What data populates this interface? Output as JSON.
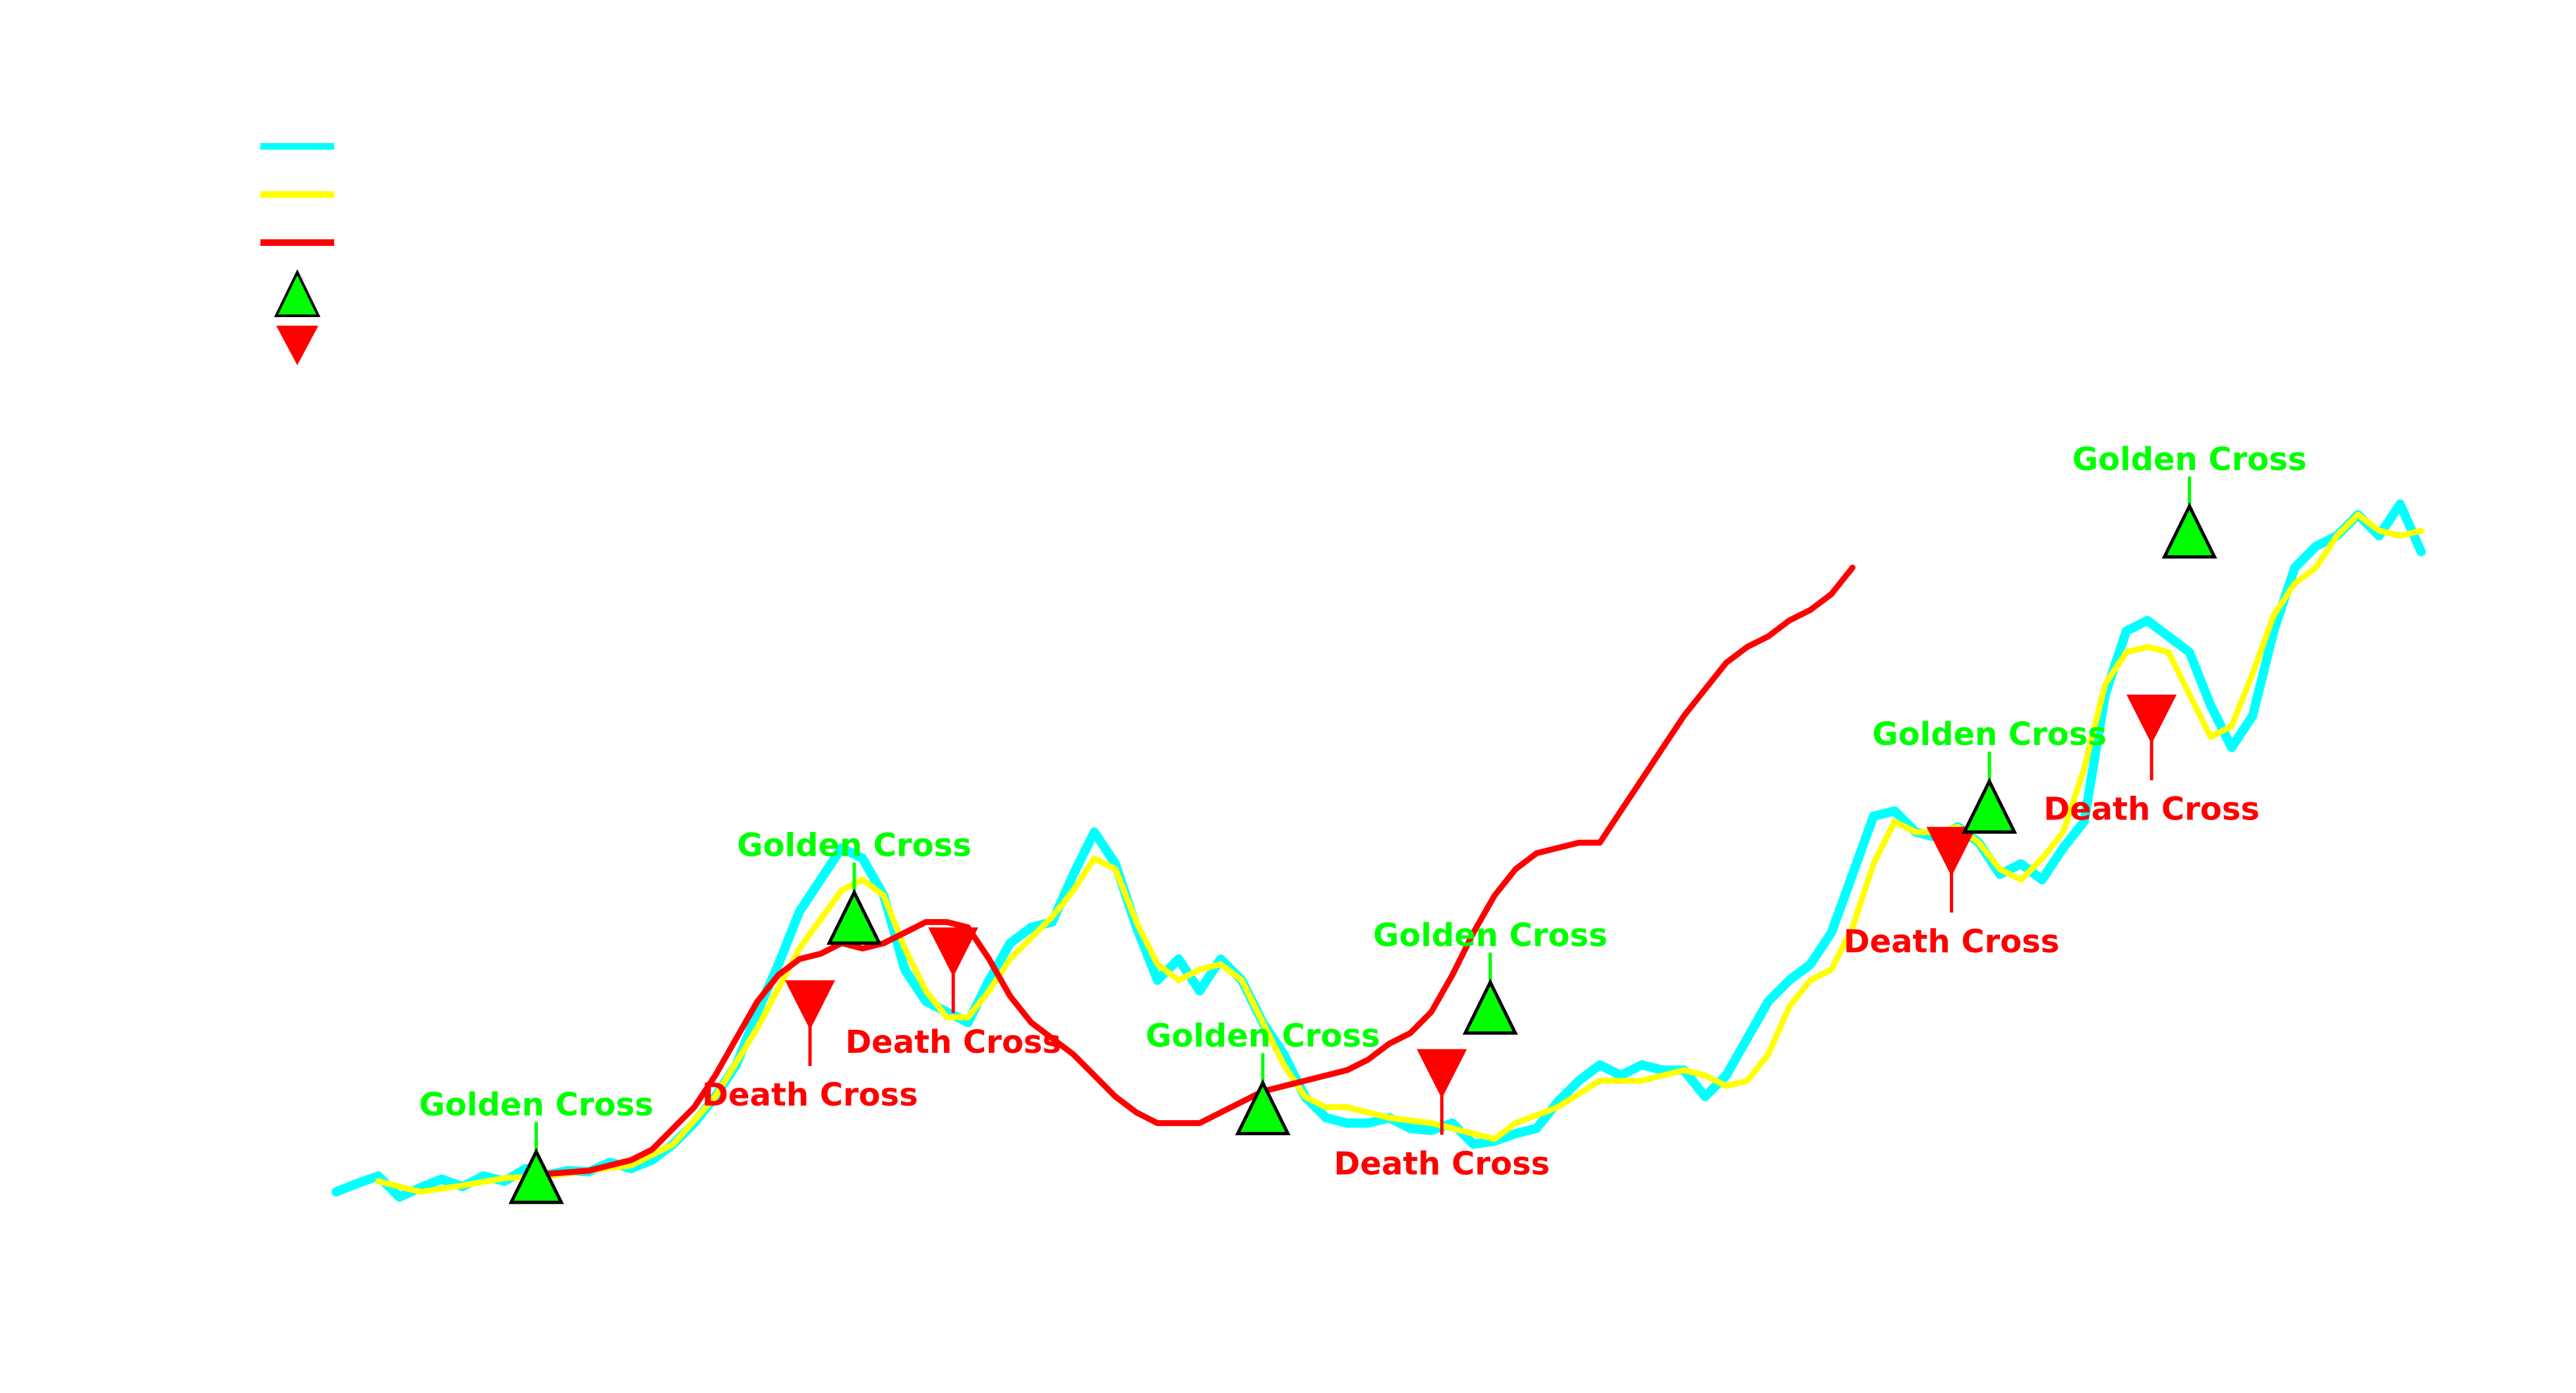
{
  "colors": {
    "price": "#00ffff",
    "ma_short": "#ffff00",
    "ma_long": "#ff0000",
    "golden": "#00ff00",
    "death": "#ff0000",
    "marker_edge": "#000000"
  },
  "chart_data": {
    "type": "line",
    "title": "",
    "xlabel": "",
    "ylabel": "",
    "xlim": [
      0,
      100
    ],
    "ylim": [
      0,
      100
    ],
    "grid": false,
    "legend": {
      "placement": "top-left",
      "entries": [
        {
          "kind": "line",
          "color_key": "price",
          "label": ""
        },
        {
          "kind": "line",
          "color_key": "ma_short",
          "label": ""
        },
        {
          "kind": "line",
          "color_key": "ma_long",
          "label": ""
        },
        {
          "kind": "marker-up",
          "color_key": "golden",
          "label": ""
        },
        {
          "kind": "marker-down",
          "color_key": "death",
          "label": ""
        }
      ]
    },
    "series": [
      {
        "key": "price",
        "color_key": "price",
        "points": [
          [
            0,
            2.0
          ],
          [
            1,
            2.8
          ],
          [
            2,
            3.5
          ],
          [
            3,
            1.5
          ],
          [
            4,
            2.4
          ],
          [
            5,
            3.2
          ],
          [
            6,
            2.5
          ],
          [
            7,
            3.5
          ],
          [
            8,
            3.0
          ],
          [
            9,
            4.2
          ],
          [
            10,
            3.6
          ],
          [
            11,
            4.0
          ],
          [
            12,
            3.9
          ],
          [
            13,
            4.8
          ],
          [
            14,
            4.2
          ],
          [
            15,
            5.0
          ],
          [
            16,
            6.5
          ],
          [
            17,
            8.5
          ],
          [
            18,
            11.0
          ],
          [
            19,
            14.0
          ],
          [
            20,
            19.0
          ],
          [
            21,
            23.5
          ],
          [
            22,
            28.5
          ],
          [
            23,
            31.5
          ],
          [
            24,
            34.5
          ],
          [
            25,
            33.5
          ],
          [
            26,
            30.0
          ],
          [
            27,
            23.0
          ],
          [
            28,
            20.0
          ],
          [
            29,
            19.0
          ],
          [
            30,
            18.0
          ],
          [
            31,
            22.0
          ],
          [
            32,
            25.5
          ],
          [
            33,
            27.0
          ],
          [
            34,
            27.5
          ],
          [
            35,
            32.0
          ],
          [
            36,
            36.0
          ],
          [
            37,
            33.0
          ],
          [
            38,
            27.0
          ],
          [
            39,
            22.0
          ],
          [
            40,
            24.0
          ],
          [
            41,
            21.0
          ],
          [
            42,
            24.0
          ],
          [
            43,
            22.0
          ],
          [
            44,
            18.0
          ],
          [
            45,
            15.0
          ],
          [
            46,
            11.0
          ],
          [
            47,
            9.0
          ],
          [
            48,
            8.5
          ],
          [
            49,
            8.5
          ],
          [
            50,
            9.0
          ],
          [
            51,
            8.0
          ],
          [
            52,
            7.8
          ],
          [
            53,
            8.5
          ],
          [
            54,
            6.5
          ],
          [
            55,
            6.8
          ],
          [
            56,
            7.5
          ],
          [
            57,
            8.0
          ],
          [
            58,
            10.5
          ],
          [
            59,
            12.5
          ],
          [
            60,
            14.0
          ],
          [
            61,
            13.0
          ],
          [
            62,
            14.0
          ],
          [
            63,
            13.5
          ],
          [
            64,
            13.5
          ],
          [
            65,
            11.0
          ],
          [
            66,
            13.0
          ],
          [
            67,
            16.5
          ],
          [
            68,
            20.0
          ],
          [
            69,
            22.0
          ],
          [
            70,
            23.5
          ],
          [
            71,
            26.5
          ],
          [
            72,
            32.0
          ],
          [
            73,
            37.5
          ],
          [
            74,
            38.0
          ],
          [
            75,
            36.0
          ],
          [
            76,
            35.5
          ],
          [
            77,
            36.5
          ],
          [
            78,
            35.0
          ],
          [
            79,
            32.0
          ],
          [
            80,
            33.0
          ],
          [
            81,
            31.5
          ],
          [
            82,
            34.5
          ],
          [
            83,
            37.0
          ],
          [
            84,
            49.0
          ],
          [
            85,
            55.0
          ],
          [
            86,
            56.0
          ],
          [
            87,
            54.5
          ],
          [
            88,
            53.0
          ],
          [
            89,
            48.0
          ],
          [
            90,
            44.0
          ],
          [
            91,
            47.0
          ],
          [
            92,
            55.0
          ],
          [
            93,
            61.0
          ],
          [
            94,
            63.0
          ],
          [
            95,
            64.0
          ],
          [
            96,
            66.0
          ],
          [
            97,
            64.0
          ],
          [
            98,
            67.0
          ],
          [
            99,
            62.5
          ]
        ]
      },
      {
        "key": "ma_short",
        "color_key": "ma_short",
        "points": [
          [
            2,
            3.0
          ],
          [
            4,
            2.0
          ],
          [
            6,
            2.6
          ],
          [
            8,
            3.3
          ],
          [
            10,
            3.5
          ],
          [
            12,
            4.0
          ],
          [
            14,
            4.5
          ],
          [
            16,
            6.5
          ],
          [
            18,
            11.0
          ],
          [
            20,
            17.5
          ],
          [
            22,
            25.0
          ],
          [
            24,
            30.5
          ],
          [
            25,
            31.5
          ],
          [
            26,
            30.0
          ],
          [
            27,
            25.0
          ],
          [
            28,
            21.0
          ],
          [
            29,
            18.5
          ],
          [
            30,
            18.5
          ],
          [
            31,
            21.0
          ],
          [
            32,
            24.0
          ],
          [
            34,
            28.0
          ],
          [
            35,
            30.5
          ],
          [
            36,
            33.5
          ],
          [
            37,
            32.5
          ],
          [
            38,
            27.5
          ],
          [
            39,
            23.5
          ],
          [
            40,
            22.0
          ],
          [
            41,
            23.0
          ],
          [
            42,
            23.5
          ],
          [
            43,
            22.0
          ],
          [
            44,
            18.0
          ],
          [
            45,
            14.0
          ],
          [
            46,
            11.0
          ],
          [
            47,
            10.0
          ],
          [
            48,
            10.0
          ],
          [
            50,
            9.0
          ],
          [
            52,
            8.5
          ],
          [
            54,
            7.5
          ],
          [
            55,
            7.0
          ],
          [
            56,
            8.5
          ],
          [
            58,
            10.0
          ],
          [
            60,
            12.5
          ],
          [
            62,
            12.5
          ],
          [
            64,
            13.5
          ],
          [
            65,
            13.0
          ],
          [
            66,
            12.0
          ],
          [
            67,
            12.5
          ],
          [
            68,
            15.0
          ],
          [
            69,
            19.5
          ],
          [
            70,
            22.0
          ],
          [
            71,
            23.0
          ],
          [
            72,
            27.0
          ],
          [
            73,
            33.0
          ],
          [
            74,
            37.0
          ],
          [
            75,
            36.0
          ],
          [
            76,
            36.0
          ],
          [
            77,
            36.5
          ],
          [
            78,
            35.0
          ],
          [
            79,
            32.5
          ],
          [
            80,
            31.5
          ],
          [
            81,
            33.5
          ],
          [
            82,
            36.0
          ],
          [
            83,
            42.0
          ],
          [
            84,
            50.0
          ],
          [
            85,
            53.0
          ],
          [
            86,
            53.5
          ],
          [
            87,
            53.0
          ],
          [
            88,
            49.0
          ],
          [
            89,
            45.0
          ],
          [
            90,
            46.0
          ],
          [
            91,
            51.0
          ],
          [
            92,
            56.5
          ],
          [
            93,
            59.5
          ],
          [
            94,
            61.0
          ],
          [
            95,
            64.0
          ],
          [
            96,
            66.0
          ],
          [
            97,
            64.5
          ],
          [
            98,
            64.0
          ],
          [
            99,
            64.5
          ]
        ]
      },
      {
        "key": "ma_long",
        "color_key": "ma_long",
        "points": [
          [
            10,
            3.7
          ],
          [
            12,
            4.0
          ],
          [
            14,
            5.0
          ],
          [
            15,
            6.0
          ],
          [
            16,
            8.0
          ],
          [
            17,
            10.0
          ],
          [
            18,
            13.0
          ],
          [
            19,
            16.5
          ],
          [
            20,
            20.0
          ],
          [
            21,
            22.5
          ],
          [
            22,
            24.0
          ],
          [
            23,
            24.5
          ],
          [
            24,
            25.5
          ],
          [
            25,
            25.0
          ],
          [
            26,
            25.5
          ],
          [
            27,
            26.5
          ],
          [
            28,
            27.5
          ],
          [
            29,
            27.5
          ],
          [
            30,
            27.0
          ],
          [
            31,
            24.0
          ],
          [
            32,
            20.5
          ],
          [
            33,
            18.0
          ],
          [
            34,
            16.5
          ],
          [
            35,
            15.0
          ],
          [
            36,
            13.0
          ],
          [
            37,
            11.0
          ],
          [
            38,
            9.5
          ],
          [
            39,
            8.5
          ],
          [
            40,
            8.5
          ],
          [
            41,
            8.5
          ],
          [
            42,
            9.5
          ],
          [
            43,
            10.5
          ],
          [
            44,
            11.5
          ],
          [
            45,
            12.0
          ],
          [
            46,
            12.5
          ],
          [
            47,
            13.0
          ],
          [
            48,
            13.5
          ],
          [
            49,
            14.5
          ],
          [
            50,
            16.0
          ],
          [
            51,
            17.0
          ],
          [
            52,
            19.0
          ],
          [
            53,
            22.5
          ],
          [
            54,
            26.5
          ],
          [
            55,
            30.0
          ],
          [
            56,
            32.5
          ],
          [
            57,
            34.0
          ],
          [
            58,
            34.5
          ],
          [
            59,
            35.0
          ],
          [
            60,
            35.0
          ],
          [
            61,
            38.0
          ],
          [
            62,
            41.0
          ],
          [
            63,
            44.0
          ],
          [
            64,
            47.0
          ],
          [
            65,
            49.5
          ],
          [
            66,
            52.0
          ],
          [
            67,
            53.5
          ],
          [
            68,
            54.5
          ],
          [
            69,
            56.0
          ],
          [
            70,
            57.0
          ],
          [
            71,
            58.5
          ],
          [
            72,
            61.0
          ]
        ]
      }
    ],
    "crosses": [
      {
        "type": "golden",
        "label": "Golden Cross",
        "x": 9.5,
        "y": 3.0
      },
      {
        "type": "death",
        "label": "Death Cross",
        "x": 22.5,
        "y": 19.5
      },
      {
        "type": "golden",
        "label": "Golden Cross",
        "x": 24.6,
        "y": 27.5
      },
      {
        "type": "death",
        "label": "Death Cross",
        "x": 29.3,
        "y": 24.5
      },
      {
        "type": "golden",
        "label": "Golden Cross",
        "x": 44.0,
        "y": 9.5
      },
      {
        "type": "death",
        "label": "Death Cross",
        "x": 52.5,
        "y": 13.0
      },
      {
        "type": "golden",
        "label": "Golden Cross",
        "x": 54.8,
        "y": 19.0
      },
      {
        "type": "death",
        "label": "Death Cross",
        "x": 76.7,
        "y": 34.0
      },
      {
        "type": "golden",
        "label": "Golden Cross",
        "x": 78.5,
        "y": 38.0
      },
      {
        "type": "death",
        "label": "Death Cross",
        "x": 86.2,
        "y": 46.5
      },
      {
        "type": "golden",
        "label": "Golden Cross",
        "x": 88.0,
        "y": 64.0
      }
    ]
  }
}
